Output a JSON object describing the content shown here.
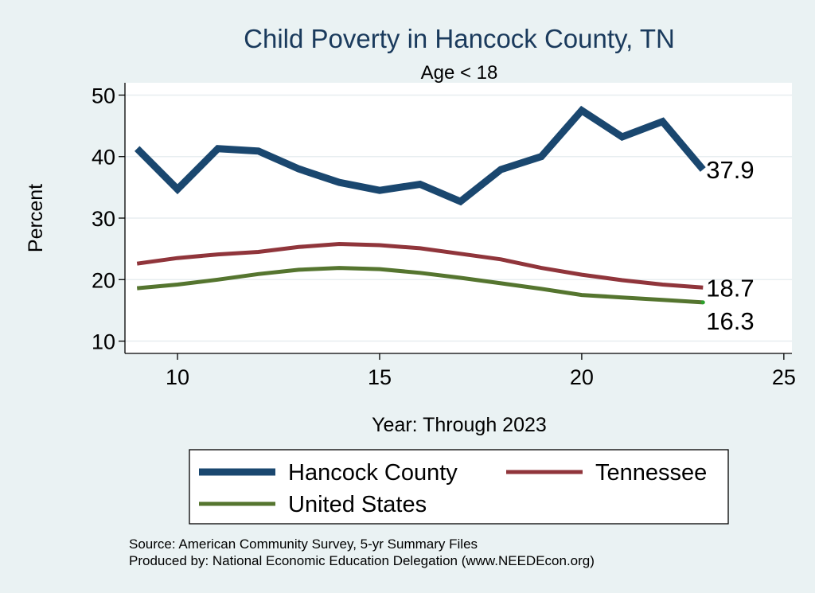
{
  "chart_data": {
    "type": "line",
    "title": "Child Poverty in Hancock County, TN",
    "subtitle": "Age < 18",
    "xlabel": "Year: Through 2023",
    "ylabel": "Percent",
    "xlim": [
      8.7,
      25.2
    ],
    "ylim": [
      8,
      52
    ],
    "x_ticks": [
      10,
      15,
      20,
      25
    ],
    "y_ticks": [
      10,
      20,
      30,
      40,
      50
    ],
    "grid": true,
    "legend_position": "bottom",
    "x": [
      9,
      10,
      11,
      12,
      13,
      14,
      15,
      16,
      17,
      18,
      19,
      20,
      21,
      22,
      23
    ],
    "series": [
      {
        "name": "Hancock County",
        "color": "#1a476f",
        "values": [
          41.3,
          34.7,
          41.3,
          40.9,
          38.0,
          35.8,
          34.5,
          35.5,
          32.7,
          37.9,
          40.0,
          47.5,
          43.2,
          45.7,
          37.9
        ],
        "end_label": "37.9"
      },
      {
        "name": "Tennessee",
        "color": "#90353b",
        "values": [
          22.6,
          23.5,
          24.1,
          24.5,
          25.3,
          25.8,
          25.6,
          25.1,
          24.2,
          23.3,
          21.9,
          20.8,
          19.9,
          19.2,
          18.7
        ],
        "end_label": "18.7"
      },
      {
        "name": "United States",
        "color": "#55752f",
        "values": [
          18.6,
          19.2,
          20.0,
          20.9,
          21.6,
          21.9,
          21.7,
          21.1,
          20.3,
          19.4,
          18.5,
          17.5,
          17.1,
          16.7,
          16.3
        ],
        "end_label": "16.3"
      }
    ],
    "source_lines": [
      "Source: American Community Survey, 5-yr Summary Files",
      "Produced by: National Economic Education Delegation (www.NEEDEcon.org)"
    ]
  }
}
